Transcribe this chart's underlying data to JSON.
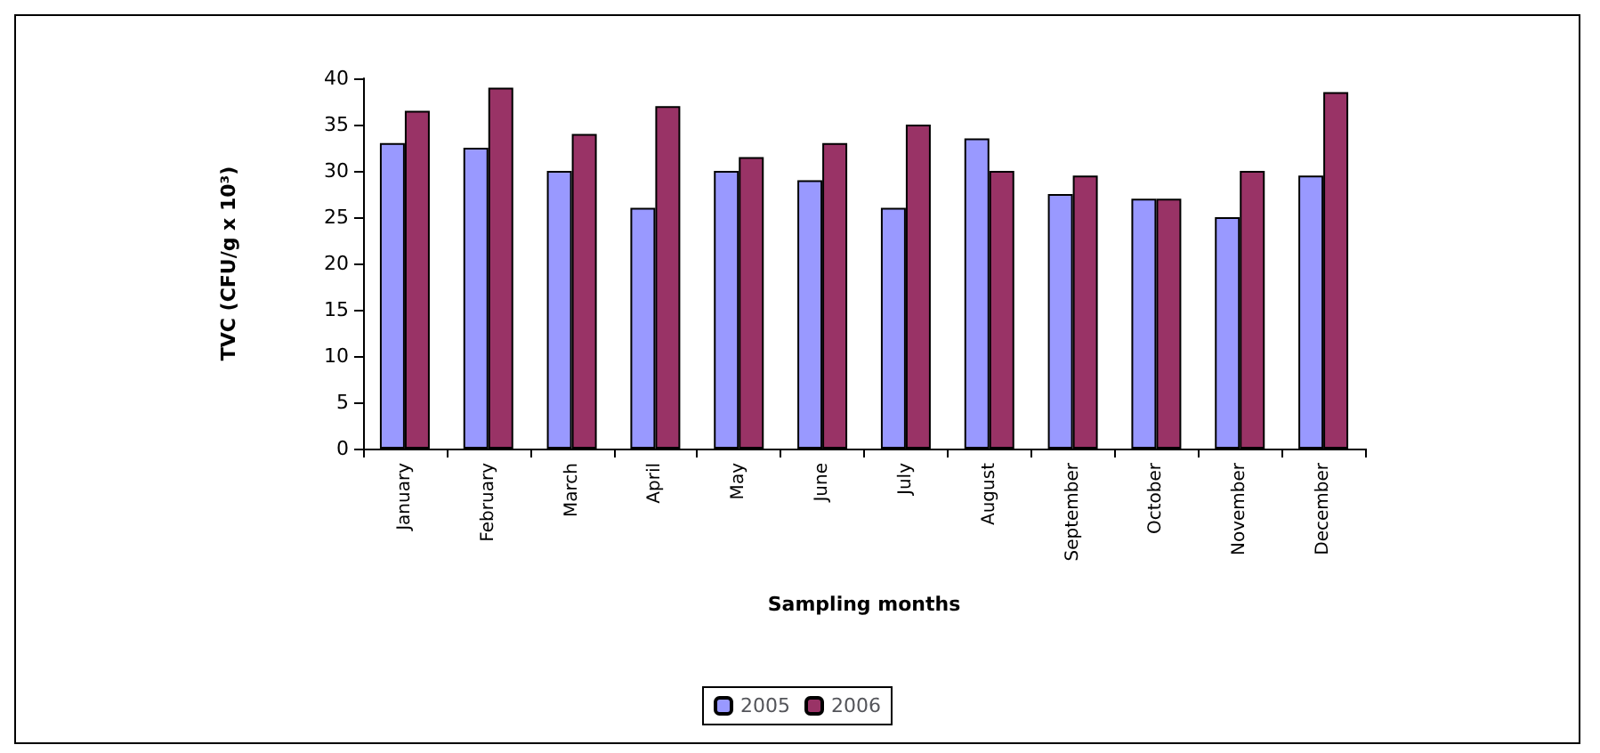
{
  "chart_data": {
    "type": "bar",
    "xlabel": "Sampling months",
    "ylabel": "TVC (CFU/g x 10³)",
    "categories": [
      "January",
      "February",
      "March",
      "April",
      "May",
      "June",
      "July",
      "August",
      "September",
      "October",
      "November",
      "December"
    ],
    "series": [
      {
        "name": "2005",
        "color": "#9999ff",
        "values": [
          33,
          32.5,
          30,
          26,
          30,
          29,
          26,
          33.5,
          27.5,
          27,
          25,
          29.5
        ]
      },
      {
        "name": "2006",
        "color": "#993366",
        "values": [
          36.5,
          39,
          34,
          37,
          31.5,
          33,
          35,
          30,
          29.5,
          27,
          30,
          38.5
        ]
      }
    ],
    "ylim": [
      0,
      40
    ],
    "yticks": [
      0,
      5,
      10,
      15,
      20,
      25,
      30,
      35,
      40
    ],
    "grid": false,
    "legend": "bottom"
  }
}
